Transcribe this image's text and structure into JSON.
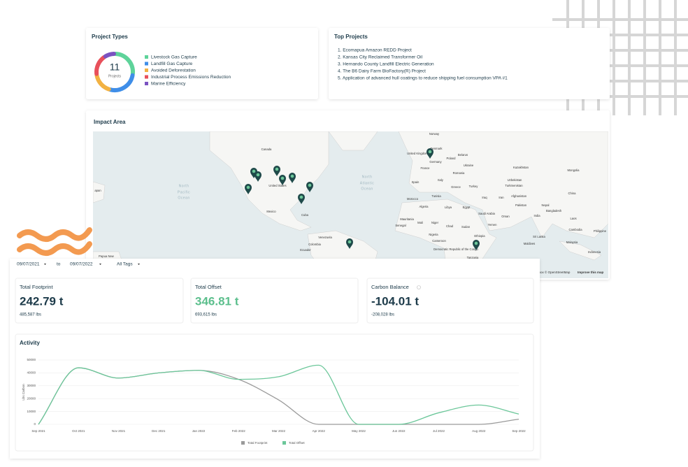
{
  "project_types": {
    "title": "Project Types",
    "total": 11,
    "total_label": "Projects",
    "items": [
      {
        "label": "Livestock Gas Capture",
        "color": "#5ed39a",
        "count": 3
      },
      {
        "label": "Landfill Gas Capture",
        "color": "#3f8ee8",
        "count": 3
      },
      {
        "label": "Avoided Deforestation",
        "color": "#f2b243",
        "count": 2
      },
      {
        "label": "Industrial Process Emissions Reduction",
        "color": "#e8505b",
        "count": 2
      },
      {
        "label": "Marine Efficiency",
        "color": "#7b53c1",
        "count": 1
      }
    ]
  },
  "top_projects": {
    "title": "Top Projects",
    "items": [
      "1. Ecomapua Amazon REDD Project",
      "2. Kansas City Reclaimed Transformer Oil",
      "3. Hernando County Landfill Electric Generation",
      "4. The B6 Dairy Farm BioFactory(R) Project",
      "5. Application of advanced hull coatings to reduce shipping fuel consumption VPA #1"
    ]
  },
  "impact_area": {
    "title": "Impact Area",
    "map_labels": [
      "Norway",
      "United Kingdom",
      "Denmark",
      "Belarus",
      "Poland",
      "Germany",
      "Ukraine",
      "France",
      "Romania",
      "Kazakhstan",
      "Mongolia",
      "Spain",
      "Italy",
      "Greece",
      "Turkey",
      "Uzbekistan",
      "Turkmenistan",
      "China",
      "Morocco",
      "Tunisia",
      "Iraq",
      "Iran",
      "Afghanistan",
      "Pakistan",
      "Nepal",
      "Algeria",
      "Libya",
      "Egypt",
      "Saudi Arabia",
      "Bangladesh",
      "India",
      "Oman",
      "Mauritania",
      "Mali",
      "Niger",
      "Chad",
      "Sudan",
      "Yemen",
      "Senegal",
      "Laos",
      "Cambodia",
      "Philippine",
      "Nigeria",
      "Ethiopia",
      "Cameroon",
      "Sri Lanka",
      "Maldives",
      "Malaysia",
      "Indonesia",
      "Democratic Republic of the Congo",
      "Tanzania",
      "Canada",
      "United States",
      "Mexico",
      "Cuba",
      "Venezuela",
      "Colombia",
      "Ecuador",
      "apan",
      "Papua New",
      "North",
      "Pacific",
      "Ocean",
      "North",
      "Atlantic",
      "Ocean"
    ],
    "attribution": "pbox © OpenStreetMap",
    "improve_link": "Improve this map"
  },
  "filters": {
    "start_date": "09/07/2021",
    "separator": "to",
    "end_date": "09/07/2022",
    "tags": "All Tags"
  },
  "stats": [
    {
      "title": "Total Footprint",
      "value": "242.79 t",
      "sub": "485,587 lbs",
      "color": "#1d3b4a"
    },
    {
      "title": "Total Offset",
      "value": "346.81 t",
      "sub": "693,615 lbs",
      "color": "#5cbf8d"
    },
    {
      "title": "Carbon Balance",
      "value": "-104.01 t",
      "sub": "-208,028 lbs",
      "color": "#1d3b4a"
    }
  ],
  "chart_data": {
    "type": "line",
    "title": "Activity",
    "y_label": "Lbs Carbon",
    "categories": [
      "Sep 2021",
      "Oct 2021",
      "Nov 2021",
      "Dec 2021",
      "Jan 2022",
      "Feb 2022",
      "Mar 2022",
      "Apr 2022",
      "May 2022",
      "Jun 2022",
      "Jul 2022",
      "Aug 2022",
      "Sep 2022"
    ],
    "series": [
      {
        "name": "Total Footprint",
        "color": "#9a9a9a",
        "values": [
          0,
          44000,
          36000,
          40000,
          42000,
          35000,
          19000,
          0,
          0,
          0,
          0,
          0,
          4000
        ]
      },
      {
        "name": "Total Offset",
        "color": "#6cc79a",
        "values": [
          0,
          44000,
          36000,
          40000,
          42000,
          35000,
          37000,
          46000,
          0,
          0,
          9000,
          15000,
          8000
        ]
      }
    ],
    "ylim": [
      0,
      50000
    ],
    "yticks": [
      0,
      10000,
      20000,
      30000,
      40000,
      50000
    ],
    "grid": true,
    "legend": "bottom"
  }
}
